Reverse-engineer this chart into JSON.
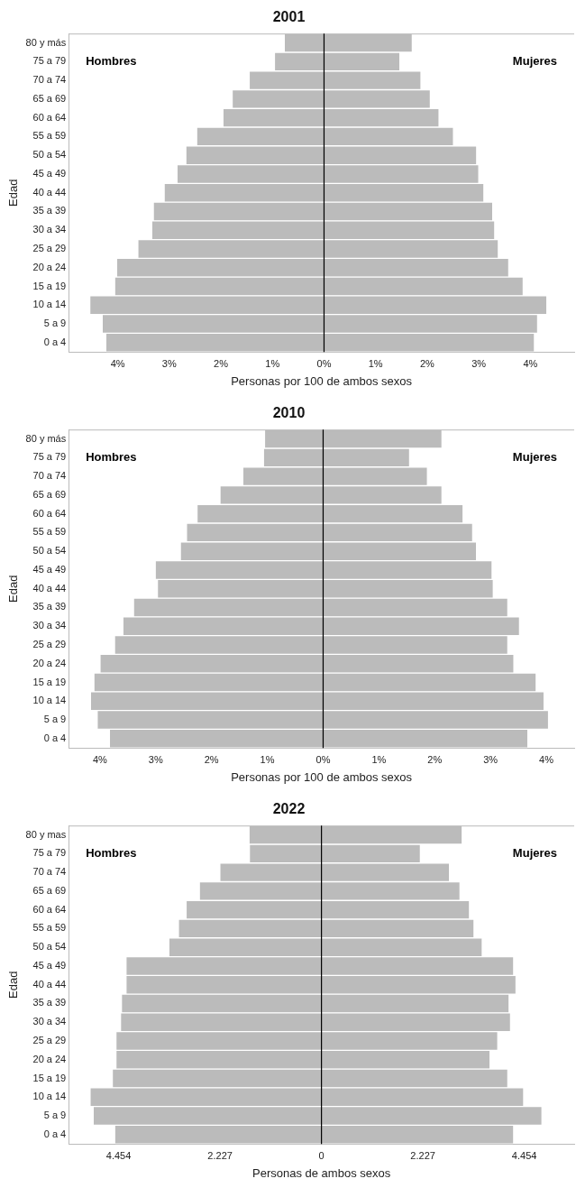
{
  "chart_data": [
    {
      "type": "bar",
      "title": "2001",
      "xlabel": "Personas por 100 de ambos sexos",
      "ylabel": "Edad",
      "orientation": "horizontal",
      "stacked": true,
      "legend": false,
      "grid": false,
      "categories": [
        "80 y más",
        "75 a 79",
        "70 a 74",
        "65 a 69",
        "60 a 64",
        "55 a 59",
        "50 a 54",
        "45 a 49",
        "40 a 44",
        "35 a 39",
        "30 a 34",
        "25 a 29",
        "20 a 24",
        "15 a 19",
        "10 a 14",
        "5 a 9",
        "0 a 4"
      ],
      "series": [
        {
          "color": "#bbbbbb",
          "values": [
            -0.76,
            -0.95,
            -1.44,
            -1.77,
            -1.95,
            -2.46,
            -2.67,
            -2.84,
            -3.09,
            -3.3,
            -3.33,
            -3.6,
            -4.01,
            -4.05,
            -4.53,
            -4.29,
            -4.22
          ]
        },
        {
          "color": "#bbbbbb",
          "values": [
            1.7,
            1.46,
            1.87,
            2.05,
            2.22,
            2.5,
            2.95,
            2.99,
            3.09,
            3.26,
            3.3,
            3.37,
            3.57,
            3.85,
            4.31,
            4.13,
            4.07
          ]
        }
      ],
      "annotations": [
        "Hombres",
        "Mujeres"
      ],
      "xlim": [
        -4.95,
        4.85
      ],
      "xticks": [
        {
          "value": -4,
          "label": "4%"
        },
        {
          "value": -3,
          "label": "3%"
        },
        {
          "value": -2,
          "label": "2%"
        },
        {
          "value": -1,
          "label": "1%"
        },
        {
          "value": 0,
          "label": "0%"
        },
        {
          "value": 1,
          "label": "1%"
        },
        {
          "value": 2,
          "label": "2%"
        },
        {
          "value": 3,
          "label": "3%"
        },
        {
          "value": 4,
          "label": "4%"
        }
      ],
      "ref_lines": [
        {
          "axis": "x",
          "value": 0,
          "color": "#000000"
        }
      ]
    },
    {
      "type": "bar",
      "title": "2010",
      "xlabel": "Personas por 100 de ambos sexos",
      "ylabel": "Edad",
      "orientation": "horizontal",
      "stacked": true,
      "legend": false,
      "grid": false,
      "categories": [
        "80 y más",
        "75 a 79",
        "70 a 74",
        "65 a 69",
        "60 a 64",
        "55 a 59",
        "50 a 54",
        "45 a 49",
        "40 a 44",
        "35 a 39",
        "30 a 34",
        "25 a 29",
        "20 a 24",
        "15 a 19",
        "10 a 14",
        "5 a 9",
        "0 a 4"
      ],
      "series": [
        {
          "color": "#bbbbbb",
          "values": [
            -1.04,
            -1.06,
            -1.43,
            -1.84,
            -2.25,
            -2.44,
            -2.55,
            -3.0,
            -2.96,
            -3.39,
            -3.58,
            -3.73,
            -3.99,
            -4.1,
            -4.16,
            -4.04,
            -3.82
          ]
        },
        {
          "color": "#bbbbbb",
          "values": [
            2.12,
            1.54,
            1.86,
            2.12,
            2.5,
            2.67,
            2.74,
            3.02,
            3.04,
            3.3,
            3.51,
            3.3,
            3.41,
            3.81,
            3.95,
            4.03,
            3.66
          ]
        }
      ],
      "annotations": [
        "Hombres",
        "Mujeres"
      ],
      "xlim": [
        -4.56,
        4.5
      ],
      "xticks": [
        {
          "value": -4,
          "label": "4%"
        },
        {
          "value": -3,
          "label": "3%"
        },
        {
          "value": -2,
          "label": "2%"
        },
        {
          "value": -1,
          "label": "1%"
        },
        {
          "value": 0,
          "label": "0%"
        },
        {
          "value": 1,
          "label": "1%"
        },
        {
          "value": 2,
          "label": "2%"
        },
        {
          "value": 3,
          "label": "3%"
        },
        {
          "value": 4,
          "label": "4%"
        }
      ],
      "ref_lines": [
        {
          "axis": "x",
          "value": 0,
          "color": "#000000"
        }
      ]
    },
    {
      "type": "bar",
      "title": "2022",
      "xlabel": "Personas de ambos sexos",
      "ylabel": "Edad",
      "orientation": "horizontal",
      "stacked": true,
      "legend": false,
      "grid": false,
      "categories": [
        "80 y mas",
        "75 a 79",
        "70 a 74",
        "65 a 69",
        "60 a 64",
        "55 a 59",
        "50 a 54",
        "45 a 49",
        "40 a 44",
        "35 a 39",
        "30 a 34",
        "25 a 29",
        "20 a 24",
        "15 a 19",
        "10 a 14",
        "5 a 9",
        "0 a 4"
      ],
      "series": [
        {
          "color": "#bbbbbb",
          "values": [
            -1580,
            -1570,
            -2220,
            -2670,
            -2960,
            -3130,
            -3340,
            -4280,
            -4280,
            -4380,
            -4400,
            -4500,
            -4500,
            -4580,
            -5070,
            -5000,
            -4530
          ]
        },
        {
          "color": "#bbbbbb",
          "values": [
            3080,
            2160,
            2800,
            3030,
            3240,
            3340,
            3520,
            4210,
            4260,
            4110,
            4140,
            3860,
            3690,
            4080,
            4430,
            4830,
            4210
          ]
        }
      ],
      "annotations": [
        "Hombres",
        "Mujeres"
      ],
      "xlim": [
        -5550,
        5550
      ],
      "xticks": [
        {
          "value": -4454,
          "label": "4.454"
        },
        {
          "value": -2227,
          "label": "2.227"
        },
        0,
        {
          "value": 2227,
          "label": "2.227"
        },
        {
          "value": 4454,
          "label": "4.454"
        }
      ],
      "ref_lines": [
        {
          "axis": "x",
          "value": 0,
          "color": "#000000"
        }
      ]
    }
  ]
}
